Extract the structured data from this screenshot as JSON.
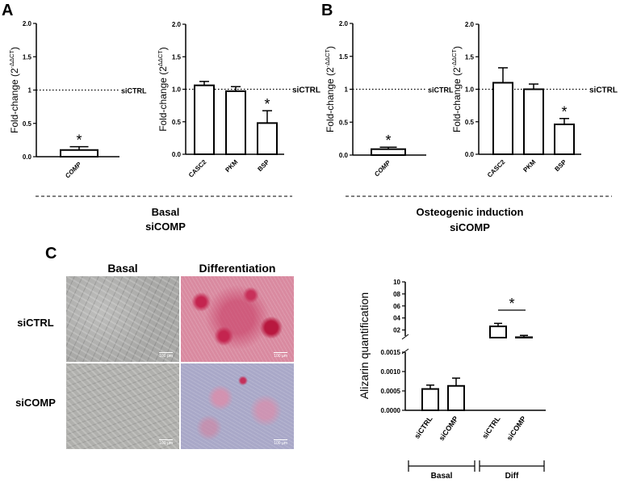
{
  "panels": {
    "A": "A",
    "B": "B",
    "C": "C"
  },
  "chart_data": [
    {
      "id": "A-left",
      "type": "bar",
      "categories": [
        "COMP"
      ],
      "values": [
        0.1
      ],
      "errors": [
        0.05
      ],
      "ylim": [
        0,
        2.0
      ],
      "ytick_labels": [
        "0.0",
        "0.5",
        "1",
        "1.5",
        "2.0"
      ],
      "ytick_values": [
        0,
        0.5,
        1,
        1.5,
        2.0
      ],
      "ylabel": "Fold-change (2",
      "ylabel_exp": "-ΔΔCT",
      "ylabel_close": ")",
      "reference": {
        "value": 1,
        "label": "siCTRL"
      },
      "significance": [
        "*"
      ]
    },
    {
      "id": "A-right",
      "type": "bar",
      "categories": [
        "CASC2",
        "PKM",
        "BSP"
      ],
      "values": [
        1.06,
        0.97,
        0.48
      ],
      "errors": [
        0.06,
        0.07,
        0.19
      ],
      "ylim": [
        0,
        2.0
      ],
      "ytick_labels": [
        "0.0",
        "0.5",
        "1.0",
        "1.5",
        "2.0"
      ],
      "ytick_values": [
        0,
        0.5,
        1,
        1.5,
        2.0
      ],
      "ylabel": "Fold-change (2",
      "ylabel_exp": "ΔΔCT",
      "ylabel_close": ")",
      "reference": {
        "value": 1,
        "label": "siCTRL"
      },
      "significance": [
        "",
        "",
        "*"
      ]
    },
    {
      "id": "B-left",
      "type": "bar",
      "categories": [
        "COMP"
      ],
      "values": [
        0.09
      ],
      "errors": [
        0.03
      ],
      "ylim": [
        0,
        2.0
      ],
      "ytick_labels": [
        "0.0",
        "0.5",
        "1",
        "1.5",
        "2.0"
      ],
      "ytick_values": [
        0,
        0.5,
        1,
        1.5,
        2.0
      ],
      "ylabel": "Fold-change (2",
      "ylabel_exp": "-ΔΔCT",
      "ylabel_close": ")",
      "reference": {
        "value": 1,
        "label": "siCTRL"
      },
      "significance": [
        "*"
      ]
    },
    {
      "id": "B-right",
      "type": "bar",
      "categories": [
        "CASC2",
        "PKM",
        "BSP"
      ],
      "values": [
        1.1,
        1.0,
        0.46
      ],
      "errors": [
        0.23,
        0.08,
        0.09
      ],
      "ylim": [
        0,
        2.0
      ],
      "ytick_labels": [
        "0.0",
        "0.5",
        "1.0",
        "1.5",
        "2.0"
      ],
      "ytick_values": [
        0,
        0.5,
        1,
        1.5,
        2.0
      ],
      "ylabel": "Fold-change (2",
      "ylabel_exp": "-ΔΔCT",
      "ylabel_close": ")",
      "reference": {
        "value": 1,
        "label": "siCTRL"
      },
      "significance": [
        "",
        "",
        "*"
      ]
    },
    {
      "id": "C-alizarin",
      "type": "bar",
      "categories": [
        "siCTRL",
        "siCOMP",
        "siCTRL",
        "siCOMP"
      ],
      "values": [
        0.00055,
        0.00063,
        2.6,
        0.8
      ],
      "errors": [
        0.0001,
        0.0002,
        0.5,
        0.3
      ],
      "ylabel": "Alizarin quantification",
      "lower_axis": {
        "ylim": [
          0,
          0.0015
        ],
        "ytick_labels": [
          "0.0000",
          "0.0005",
          "0.0010",
          "0.0015"
        ],
        "ytick_values": [
          0,
          0.0005,
          0.001,
          0.0015
        ]
      },
      "upper_axis": {
        "ylim": [
          1,
          10
        ],
        "ytick_labels": [
          "02",
          "04",
          "06",
          "08",
          "10"
        ],
        "ytick_values": [
          2,
          4,
          6,
          8,
          10
        ]
      },
      "groups": [
        {
          "label": "Basal"
        },
        {
          "label": "Diff"
        }
      ],
      "significance": {
        "label": "*"
      }
    }
  ],
  "group_labels": {
    "A_title": "Basal",
    "A_subtitle": "siCOMP",
    "B_title": "Osteogenic  induction",
    "B_subtitle": "siCOMP"
  },
  "micrographs": {
    "col_basal": "Basal",
    "col_diff": "Differentiation",
    "row_ctrl": "siCTRL",
    "row_comp": "siCOMP",
    "scale": "100 µm"
  }
}
